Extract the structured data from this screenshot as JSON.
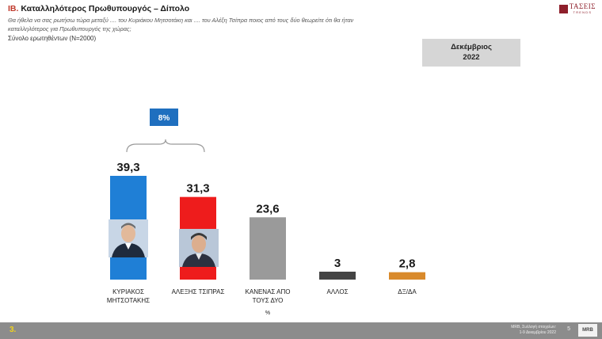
{
  "header": {
    "title_num": "ΙΒ.",
    "title_text": "Καταλληλότερος Πρωθυπουργός – Δίπολο",
    "question_line1": "Θα ήθελα να σας ρωτήσω τώρα μεταξύ .... του Κυριάκου Μητσοτάκη και .... του  Αλέξη Τσίπρα ποιος από τους δύο θεωρείτε ότι θα ήταν",
    "question_line2": "καταλληλότερος για Πρωθυπουργός της χώρας;",
    "base": "Σύνολο ερωτηθέντων (N=2000)"
  },
  "logo": {
    "name": "ΤΑΣΕΙΣ",
    "sub": "TRENDS",
    "icon": "logo-mark-icon"
  },
  "period": {
    "line1": "Δεκέμβριος",
    "line2": "2022"
  },
  "chart_data": {
    "type": "bar",
    "categories": [
      [
        "ΚΥΡΙΑΚΟΣ",
        "ΜΗΤΣΟΤΑΚΗΣ"
      ],
      [
        "ΑΛΕΞΗΣ ΤΣΙΠΡΑΣ"
      ],
      [
        "ΚΑΝΕΝΑΣ ΑΠΟ",
        "ΤΟΥΣ ΔΥΟ"
      ],
      [
        "ΑΛΛΟΣ"
      ],
      [
        "ΔΞ/ΔΑ"
      ]
    ],
    "values": [
      39.3,
      31.3,
      23.6,
      3,
      2.8
    ],
    "value_labels": [
      "39,3",
      "31,3",
      "23,6",
      "3",
      "2,8"
    ],
    "colors": [
      "#1f7fd6",
      "#ee1c1c",
      "#9a9a9a",
      "#444444",
      "#d98a2b"
    ],
    "unit_label": "%",
    "difference_label": "8%",
    "difference_color": "#1f6fbf",
    "ylim": [
      0,
      45
    ]
  },
  "footer": {
    "page": "3.",
    "source_line1": "MRB, Συλλογή στοιχείων:",
    "source_line2": "1-9 Δεκεμβρίου 2022",
    "slide": "5",
    "logo": "MRB"
  }
}
